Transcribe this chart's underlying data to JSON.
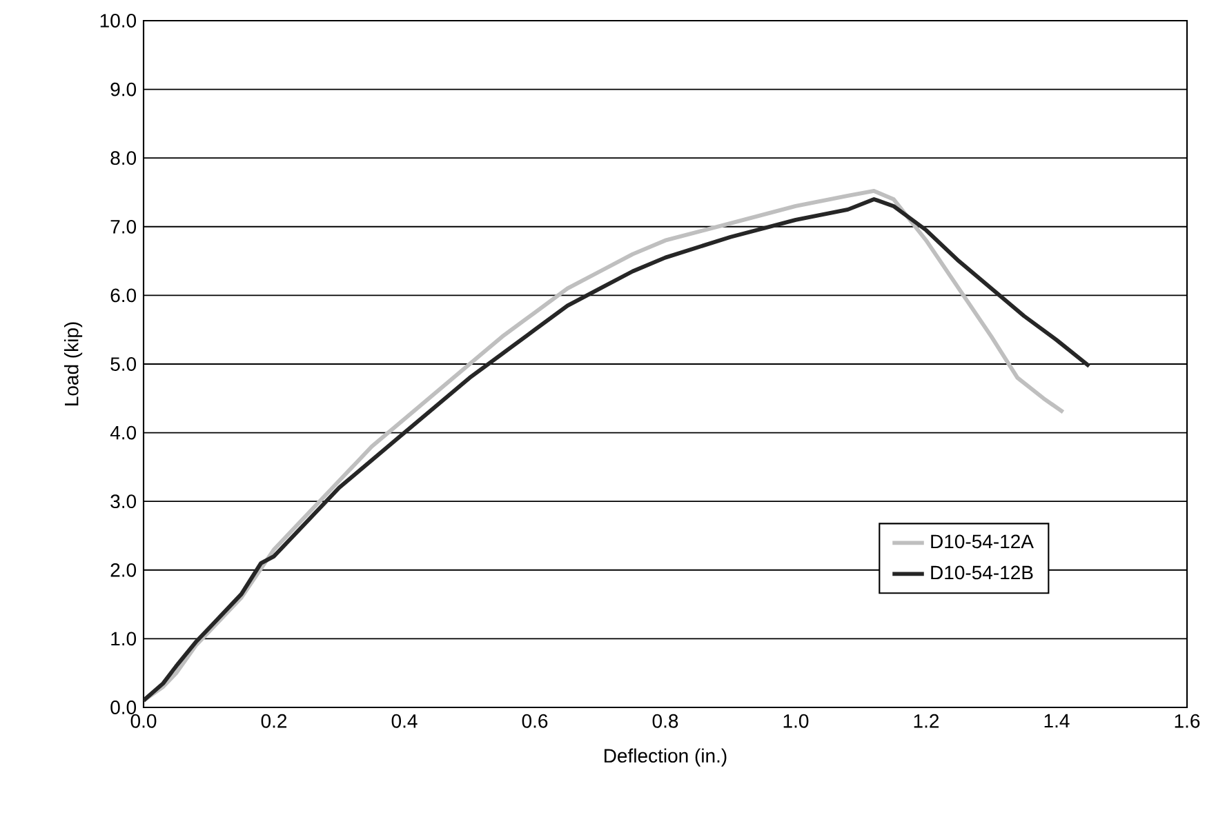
{
  "chart_data": {
    "type": "line",
    "xlabel": "Deflection (in.)",
    "ylabel": "Load (kip)",
    "xlim": [
      0,
      1.6
    ],
    "ylim": [
      0,
      10
    ],
    "xticks": [
      {
        "value": 0,
        "label": "0.0"
      },
      {
        "value": 0.2,
        "label": "0.2"
      },
      {
        "value": 0.4,
        "label": "0.4"
      },
      {
        "value": 0.6,
        "label": "0.6"
      },
      {
        "value": 0.8,
        "label": "0.8"
      },
      {
        "value": 1.0,
        "label": "1.0"
      },
      {
        "value": 1.2,
        "label": "1.2"
      },
      {
        "value": 1.4,
        "label": "1.4"
      },
      {
        "value": 1.6,
        "label": "1.6"
      }
    ],
    "yticks": [
      {
        "value": 0,
        "label": "0.0"
      },
      {
        "value": 1,
        "label": "1.0"
      },
      {
        "value": 2,
        "label": "2.0"
      },
      {
        "value": 3,
        "label": "3.0"
      },
      {
        "value": 4,
        "label": "4.0"
      },
      {
        "value": 5,
        "label": "5.0"
      },
      {
        "value": 6,
        "label": "6.0"
      },
      {
        "value": 7,
        "label": "7.0"
      },
      {
        "value": 8,
        "label": "8.0"
      },
      {
        "value": 9,
        "label": "9.0"
      },
      {
        "value": 10,
        "label": "10.0"
      }
    ],
    "grid": "y",
    "legend": "right",
    "marker": "none",
    "line_style": "solid",
    "series": [
      {
        "name": "D10-54-12A",
        "color": "#bfbfbf",
        "x": [
          0,
          0.03,
          0.05,
          0.08,
          0.1,
          0.15,
          0.2,
          0.25,
          0.3,
          0.35,
          0.4,
          0.45,
          0.5,
          0.55,
          0.6,
          0.65,
          0.7,
          0.75,
          0.8,
          0.9,
          1.0,
          1.08,
          1.12,
          1.15,
          1.2,
          1.25,
          1.3,
          1.34,
          1.38,
          1.41
        ],
        "values": [
          0.1,
          0.3,
          0.5,
          0.9,
          1.1,
          1.6,
          2.3,
          2.8,
          3.3,
          3.8,
          4.2,
          4.6,
          5.0,
          5.4,
          5.75,
          6.1,
          6.35,
          6.6,
          6.8,
          7.05,
          7.3,
          7.45,
          7.52,
          7.4,
          6.8,
          6.1,
          5.4,
          4.8,
          4.5,
          4.3
        ]
      },
      {
        "name": "D10-54-12B",
        "color": "#262626",
        "x": [
          0,
          0.03,
          0.05,
          0.08,
          0.1,
          0.15,
          0.18,
          0.2,
          0.25,
          0.3,
          0.35,
          0.4,
          0.45,
          0.5,
          0.55,
          0.6,
          0.65,
          0.7,
          0.75,
          0.8,
          0.9,
          1.0,
          1.08,
          1.12,
          1.15,
          1.2,
          1.25,
          1.3,
          1.35,
          1.4,
          1.45
        ],
        "values": [
          0.1,
          0.35,
          0.6,
          0.95,
          1.15,
          1.65,
          2.1,
          2.2,
          2.7,
          3.2,
          3.6,
          4.0,
          4.4,
          4.8,
          5.15,
          5.5,
          5.85,
          6.1,
          6.35,
          6.55,
          6.85,
          7.1,
          7.25,
          7.4,
          7.3,
          6.95,
          6.5,
          6.1,
          5.7,
          5.35,
          4.97
        ]
      }
    ]
  }
}
